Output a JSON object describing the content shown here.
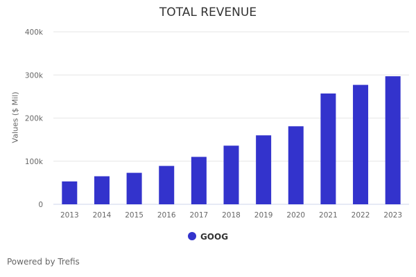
{
  "chart_data": {
    "type": "bar",
    "title": "TOTAL REVENUE",
    "xlabel": "",
    "ylabel": "Values ($ Mil)",
    "categories": [
      "2013",
      "2014",
      "2015",
      "2016",
      "2017",
      "2018",
      "2019",
      "2020",
      "2021",
      "2022",
      "2023"
    ],
    "series": [
      {
        "name": "GOOG",
        "color": "#3333cc",
        "values": [
          53000,
          65000,
          73000,
          89000,
          110000,
          136000,
          160000,
          181000,
          257000,
          277000,
          297000
        ]
      }
    ],
    "ylim": [
      0,
      400000
    ],
    "yticks": [
      0,
      100000,
      200000,
      300000,
      400000
    ],
    "ytick_labels": [
      "0",
      "100k",
      "200k",
      "300k",
      "400k"
    ],
    "grid": true,
    "legend": "bottom-center"
  },
  "credit": "Powered by Trefis"
}
